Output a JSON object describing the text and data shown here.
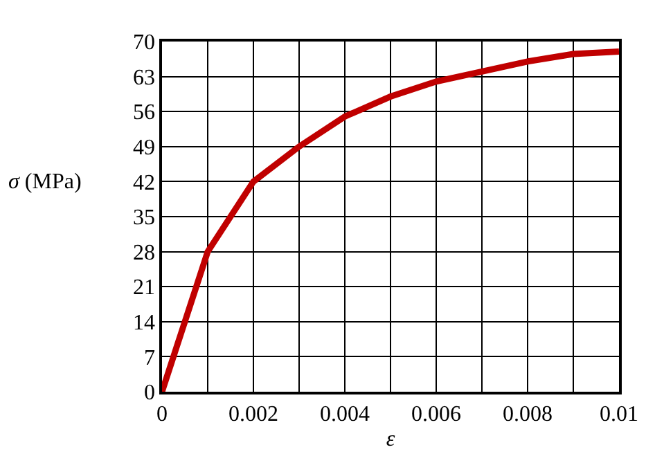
{
  "chart_data": {
    "type": "line",
    "xlabel": "ε",
    "ylabel": "σ (MPa)",
    "x": [
      0,
      0.001,
      0.002,
      0.003,
      0.004,
      0.005,
      0.006,
      0.007,
      0.008,
      0.009,
      0.01
    ],
    "series": [
      {
        "color": "#c00000",
        "values": [
          0,
          28,
          42,
          49,
          55,
          59,
          62,
          64,
          66,
          67.5,
          68
        ]
      }
    ],
    "xlim": [
      0,
      0.01
    ],
    "ylim": [
      0,
      70
    ],
    "xticks": [
      0,
      {
        "value": 0.001,
        "label": null
      },
      0.002,
      {
        "value": 0.003,
        "label": null
      },
      0.004,
      {
        "value": 0.005,
        "label": null
      },
      0.006,
      {
        "value": 0.007,
        "label": null
      },
      0.008,
      {
        "value": 0.009,
        "label": null
      },
      0.01
    ],
    "yticks": [
      0,
      7,
      14,
      21,
      28,
      35,
      42,
      49,
      56,
      63,
      70
    ],
    "grid": true,
    "marker": "none",
    "line_style": "solid"
  }
}
